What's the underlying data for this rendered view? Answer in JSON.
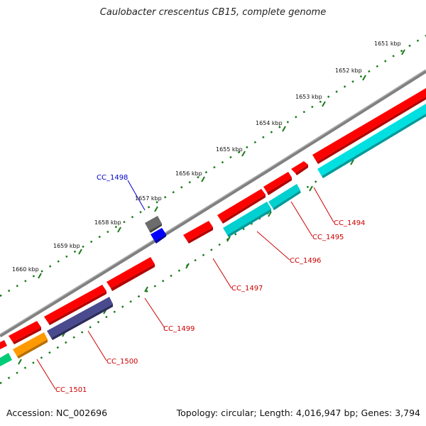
{
  "title": "Caulobacter crescentus CB15, complete genome",
  "footer": {
    "accession": "Accession: NC_002696",
    "summary": "Topology: circular; Length: 4,016,947 bp; Genes: 3,794"
  },
  "scale_labels": [
    "1651 kbp",
    "1652 kbp",
    "1653 kbp",
    "1654 kbp",
    "1655 kbp",
    "1656 kbp",
    "1657 kbp",
    "1658 kbp",
    "1659 kbp",
    "1660 kbp"
  ],
  "gene_labels": [
    "CC_1494",
    "CC_1495",
    "CC_1496",
    "CC_1497",
    "CC_1498",
    "CC_1499",
    "CC_1500",
    "CC_1501"
  ],
  "colors": {
    "backbone": "#808080",
    "scale_dots": "#1a7a1a",
    "label_forward": "#cc0000",
    "label_reverse_highlight": "#0000cc",
    "red": "#ff0000",
    "cyan": "#00dada",
    "slate": "#4a4a8e",
    "orange": "#ff9900",
    "green": "#00cc77",
    "gray": "#6c6c6c",
    "blue": "#0000ff"
  }
}
